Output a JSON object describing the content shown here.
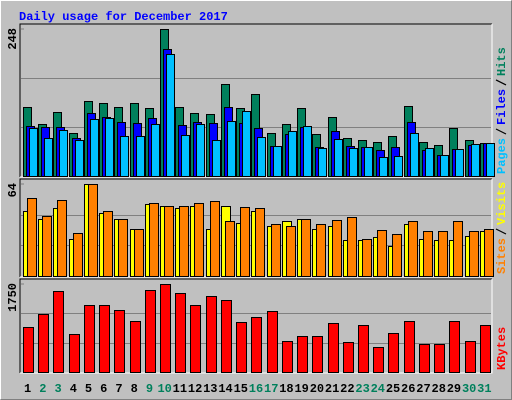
{
  "title": "Daily usage for December 2017",
  "title_color": "#0000ff",
  "chart_data": [
    {
      "type": "bar",
      "ylim": [
        0,
        248
      ],
      "yticks": [
        248
      ],
      "series": [
        {
          "name": "Hits",
          "color": "#00805c",
          "values": [
            116,
            88,
            108,
            73,
            127,
            123,
            116,
            123,
            115,
            248,
            116,
            106,
            105,
            155,
            115,
            138,
            73,
            88,
            115,
            71,
            100,
            64,
            61,
            57,
            67,
            118,
            57,
            52,
            81,
            61,
            56
          ]
        },
        {
          "name": "Files",
          "color": "#0000ff",
          "values": [
            84,
            83,
            83,
            64,
            106,
            100,
            91,
            89,
            98,
            214,
            86,
            91,
            89,
            116,
            89,
            81,
            51,
            71,
            83,
            49,
            76,
            51,
            49,
            44,
            49,
            91,
            44,
            35,
            46,
            52,
            56
          ]
        },
        {
          "name": "Pages",
          "color": "#00c0ff",
          "values": [
            81,
            64,
            78,
            61,
            96,
            98,
            67,
            67,
            88,
            206,
            69,
            88,
            61,
            93,
            110,
            66,
            51,
            76,
            84,
            47,
            62,
            47,
            49,
            32,
            34,
            73,
            47,
            35,
            46,
            54,
            56
          ]
        }
      ]
    },
    {
      "type": "bar",
      "ylim": [
        0,
        64
      ],
      "yticks": [
        64
      ],
      "series": [
        {
          "name": "Visits",
          "color": "#ffff00",
          "values": [
            45,
            40,
            47,
            26,
            64,
            44,
            40,
            33,
            50,
            49,
            47,
            49,
            33,
            49,
            37,
            45,
            35,
            38,
            40,
            33,
            35,
            25,
            25,
            27,
            21,
            36,
            26,
            25,
            25,
            28,
            31
          ]
        },
        {
          "name": "Sites",
          "color": "#ff8000",
          "values": [
            54,
            42,
            53,
            30,
            64,
            45,
            40,
            33,
            51,
            49,
            49,
            51,
            52,
            38,
            48,
            47,
            36,
            35,
            40,
            36,
            39,
            41,
            26,
            32,
            29,
            38,
            31,
            31,
            38,
            31,
            33
          ]
        }
      ]
    },
    {
      "type": "bar",
      "ylim": [
        0,
        1750
      ],
      "yticks": [
        1750
      ],
      "series": [
        {
          "name": "KBytes",
          "color": "#ff0000",
          "values": [
            895,
            1154,
            1612,
            756,
            1333,
            1333,
            1234,
            1015,
            1632,
            1750,
            1572,
            1333,
            1512,
            1433,
            995,
            1094,
            1214,
            617,
            716,
            716,
            975,
            597,
            935,
            497,
            776,
            1015,
            557,
            557,
            1015,
            617,
            935
          ]
        }
      ],
      "categories": [
        "1",
        "2",
        "3",
        "4",
        "5",
        "6",
        "7",
        "8",
        "9",
        "10",
        "11",
        "12",
        "13",
        "14",
        "15",
        "16",
        "17",
        "18",
        "19",
        "20",
        "21",
        "22",
        "23",
        "24",
        "25",
        "26",
        "27",
        "28",
        "29",
        "30",
        "31"
      ],
      "category_colors": [
        "#000000",
        "#00805c",
        "#00805c",
        "#000000",
        "#000000",
        "#000000",
        "#000000",
        "#000000",
        "#00805c",
        "#00805c",
        "#000000",
        "#000000",
        "#000000",
        "#000000",
        "#000000",
        "#00805c",
        "#00805c",
        "#000000",
        "#000000",
        "#000000",
        "#000000",
        "#000000",
        "#00805c",
        "#00805c",
        "#000000",
        "#000000",
        "#000000",
        "#000000",
        "#000000",
        "#00805c",
        "#00805c"
      ]
    }
  ]
}
